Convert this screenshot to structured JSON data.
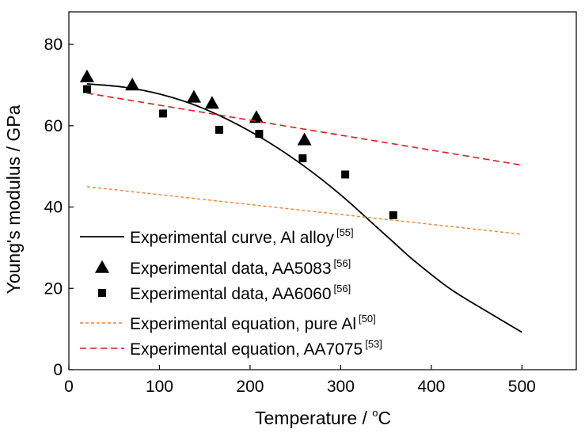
{
  "chart_data": {
    "type": "line",
    "title": "",
    "xlabel": "Temperature / ",
    "xlabel_unit": "°C",
    "ylabel": "Young's modulus / GPa",
    "xlim": [
      0,
      560
    ],
    "ylim": [
      0,
      88
    ],
    "x_ticks": [
      0,
      100,
      200,
      300,
      400,
      500
    ],
    "y_ticks": [
      0,
      20,
      40,
      60,
      80
    ],
    "grid": false,
    "legend_position": "lower-left",
    "series": [
      {
        "name": "Experimental curve, Al alloy",
        "ref": "[55]",
        "style": "solid-line",
        "color": "#000000",
        "x": [
          20,
          60,
          100,
          140,
          180,
          220,
          260,
          300,
          340,
          360,
          380,
          420,
          460,
          500
        ],
        "y": [
          70.3,
          69.5,
          67.8,
          65.0,
          61.0,
          56.0,
          50.0,
          43.0,
          35.0,
          31.0,
          27.0,
          20.0,
          14.5,
          9.2
        ]
      },
      {
        "name": "Experimental data, AA5083",
        "ref": "[56]",
        "style": "triangle-marker",
        "color": "#000000",
        "x": [
          20,
          70,
          138,
          158,
          207,
          260
        ],
        "y": [
          72.0,
          70.0,
          67.0,
          65.5,
          62.0,
          56.5
        ]
      },
      {
        "name": "Experimental data, AA6060",
        "ref": "[56]",
        "style": "square-marker",
        "color": "#000000",
        "x": [
          20,
          104,
          166,
          210,
          258,
          305,
          358
        ],
        "y": [
          69.0,
          63.0,
          59.0,
          58.0,
          52.0,
          48.0,
          38.0
        ]
      },
      {
        "name": "Experimental equation, pure Al",
        "ref": "[50]",
        "style": "short-dash-line",
        "color": "#F08030",
        "x": [
          20,
          500
        ],
        "y": [
          45.0,
          33.3
        ]
      },
      {
        "name": "Experimental equation, AA7075",
        "ref": "[53]",
        "style": "dash-line",
        "color": "#E41A1C",
        "x": [
          20,
          500
        ],
        "y": [
          68.0,
          50.3
        ]
      }
    ]
  }
}
